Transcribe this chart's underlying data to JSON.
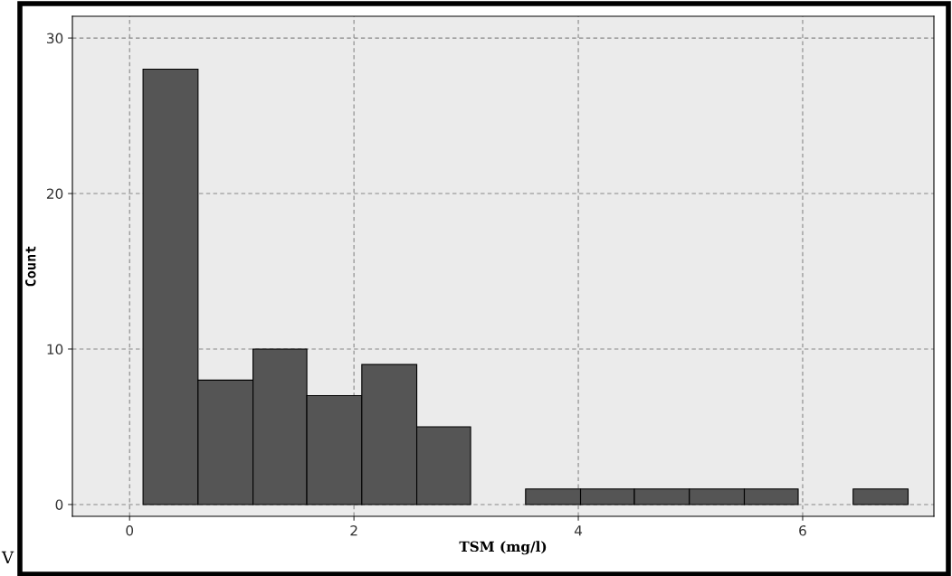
{
  "chart_data": {
    "type": "histogram",
    "xlabel": "TSM (mg/l)",
    "ylabel": "Count",
    "bins": [
      0.12,
      0.61,
      1.1,
      1.58,
      2.07,
      2.56,
      3.04,
      3.53,
      4.02,
      4.5,
      4.99,
      5.48,
      5.96,
      6.45,
      6.94
    ],
    "values": [
      28,
      8,
      10,
      7,
      9,
      5,
      0,
      1,
      1,
      1,
      1,
      1,
      0,
      1
    ],
    "color": "#555555",
    "xlim": [
      -0.51,
      7.17
    ],
    "ylim": [
      -0.76,
      31.4
    ],
    "xticks": [
      0,
      2,
      4,
      6
    ],
    "yticks": [
      0,
      10,
      20,
      30
    ],
    "grid": true,
    "annotations": [
      "V"
    ]
  }
}
